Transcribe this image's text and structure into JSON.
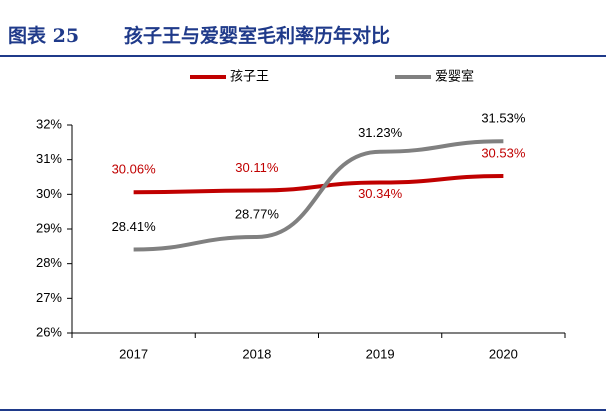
{
  "chart_data": {
    "type": "line",
    "label": "图表 25",
    "title": "孩子王与爱婴室毛利率历年对比",
    "categories": [
      "2017",
      "2018",
      "2019",
      "2020"
    ],
    "series": [
      {
        "name": "孩子王",
        "color": "#c00000",
        "values": [
          30.06,
          30.11,
          30.34,
          30.53
        ],
        "value_labels": [
          "30.06%",
          "30.11%",
          "30.34%",
          "30.53%"
        ]
      },
      {
        "name": "爱婴室",
        "color": "#808080",
        "values": [
          28.41,
          28.77,
          31.23,
          31.53
        ],
        "value_labels": [
          "28.41%",
          "28.77%",
          "31.23%",
          "31.53%"
        ]
      }
    ],
    "ylim": [
      26,
      32
    ],
    "yticks": [
      {
        "value": 26,
        "label": "26%"
      },
      {
        "value": 27,
        "label": "27%"
      },
      {
        "value": 28,
        "label": "28%"
      },
      {
        "value": 29,
        "label": "29%"
      },
      {
        "value": 30,
        "label": "30%"
      },
      {
        "value": 31,
        "label": "31%"
      },
      {
        "value": 32,
        "label": "32%"
      }
    ],
    "grid": false,
    "legend": "top"
  }
}
